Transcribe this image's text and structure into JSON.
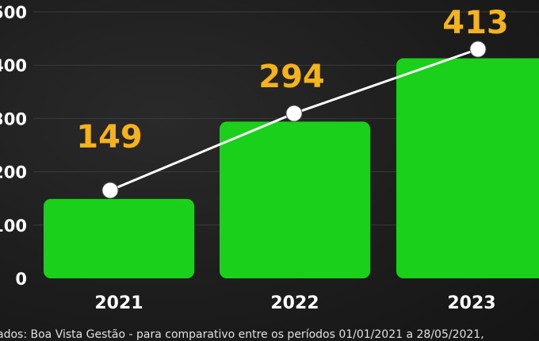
{
  "chart_data": {
    "type": "bar",
    "categories": [
      "2021",
      "2022",
      "2023"
    ],
    "values": [
      149,
      294,
      413
    ],
    "data_labels": [
      "149",
      "294",
      "413"
    ],
    "ylim": [
      0,
      500
    ],
    "y_ticks": [
      0,
      100,
      200,
      300,
      400,
      500
    ],
    "y_tick_labels": [
      "0",
      "100",
      "200",
      "300",
      "400",
      "500"
    ],
    "grid": true,
    "overlay_line": true,
    "colors": {
      "bar": "#1bd01b",
      "label": "#f5b21a",
      "line": "#ffffff",
      "grid": "#3a3a3a",
      "background": "#1c1c1c"
    }
  },
  "footnote": "ados: Boa Vista Gestão - para comparativo entre os períodos 01/01/2021 a 28/05/2021,"
}
